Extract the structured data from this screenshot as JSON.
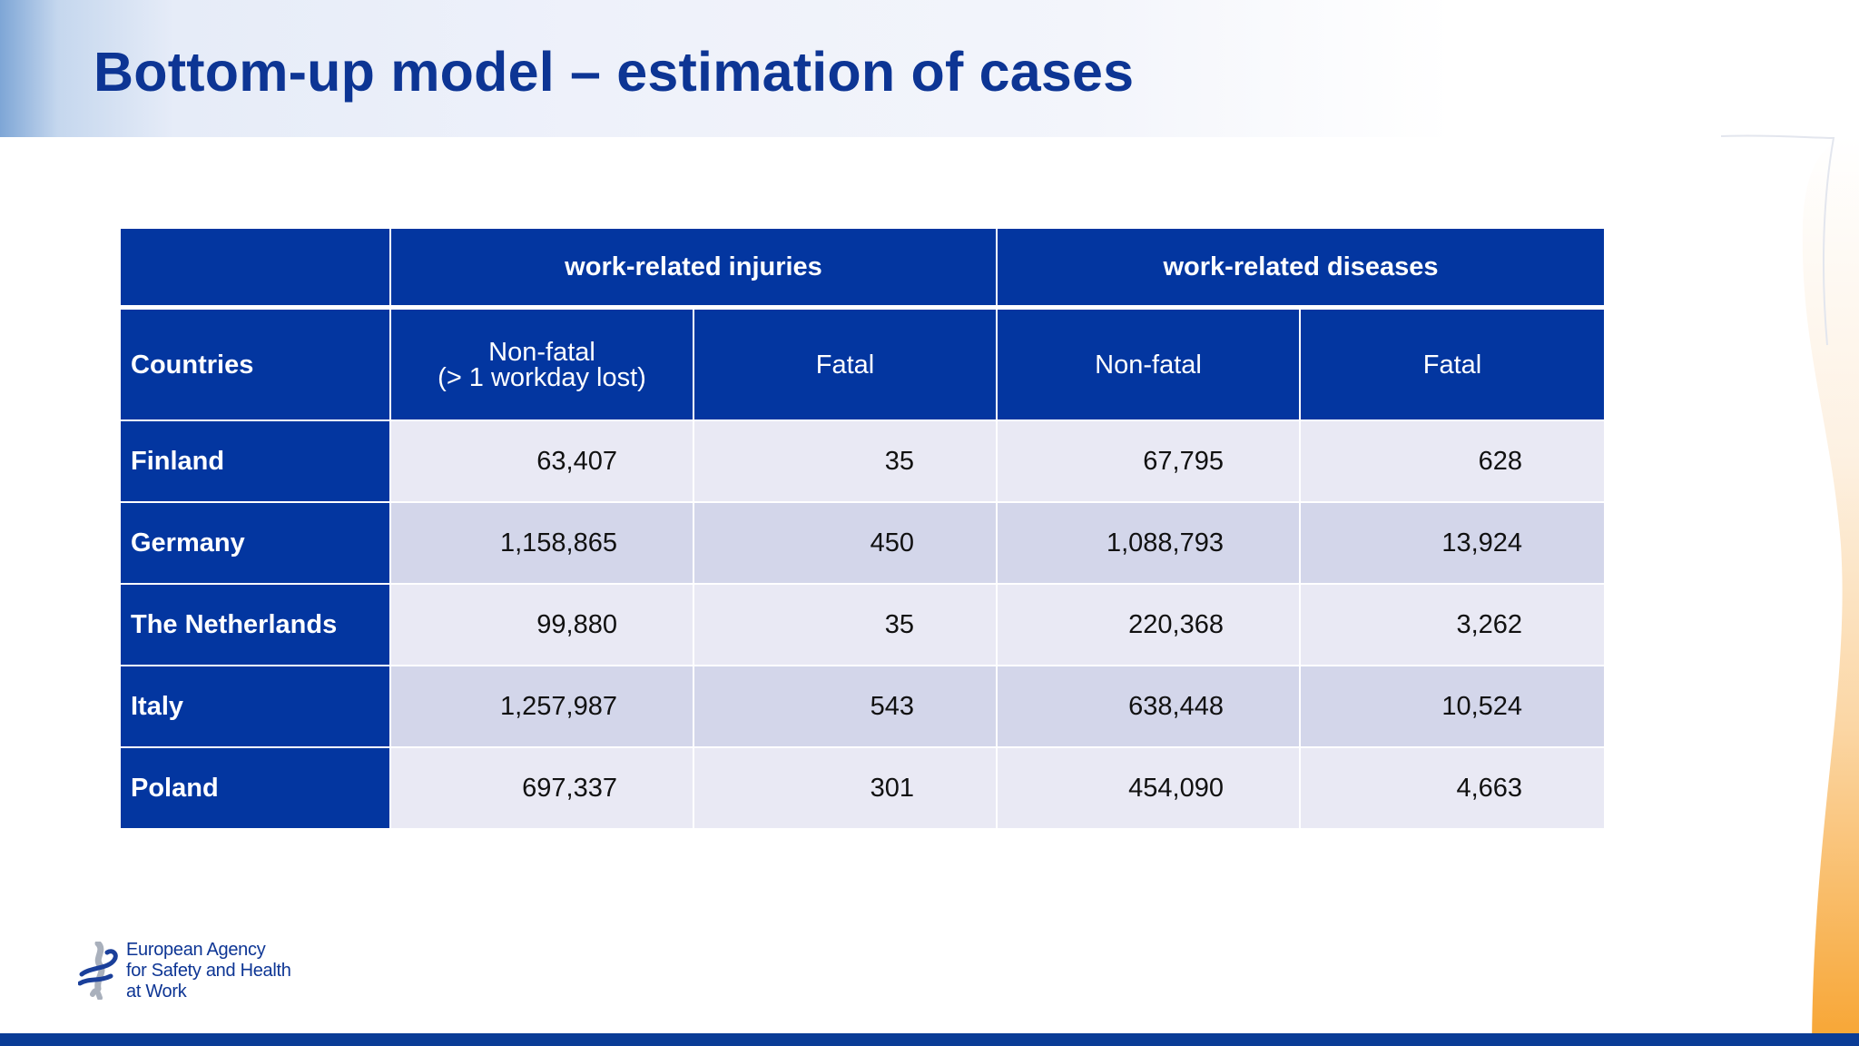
{
  "slide": {
    "title": "Bottom-up model – estimation of cases"
  },
  "table": {
    "group_headers": [
      "",
      "work-related injuries",
      "work-related diseases"
    ],
    "countries_label": "Countries",
    "sub_headers": {
      "injuries_nonfatal_line1": "Non-fatal",
      "injuries_nonfatal_line2": "(> 1 workday lost)",
      "injuries_fatal": "Fatal",
      "diseases_nonfatal": "Non-fatal",
      "diseases_fatal": "Fatal"
    },
    "rows": [
      {
        "country": "Finland",
        "values": [
          "63,407",
          "35",
          "67,795",
          "628"
        ]
      },
      {
        "country": "Germany",
        "values": [
          "1,158,865",
          "450",
          "1,088,793",
          "13,924"
        ]
      },
      {
        "country": "The Netherlands",
        "values": [
          "99,880",
          "35",
          "220,368",
          "3,262"
        ]
      },
      {
        "country": "Italy",
        "values": [
          "1,257,987",
          "543",
          "638,448",
          "10,524"
        ]
      },
      {
        "country": "Poland",
        "values": [
          "697,337",
          "301",
          "454,090",
          "4,663"
        ]
      }
    ]
  },
  "logo": {
    "lines": [
      "European Agency",
      "for Safety and Health",
      "at Work"
    ]
  },
  "colors": {
    "brand_blue": "#0336a0",
    "title_blue": "#0d3594",
    "row_light": "#e9e9f4",
    "row_dark": "#d3d6ea",
    "accent_orange": "#f7a533"
  }
}
